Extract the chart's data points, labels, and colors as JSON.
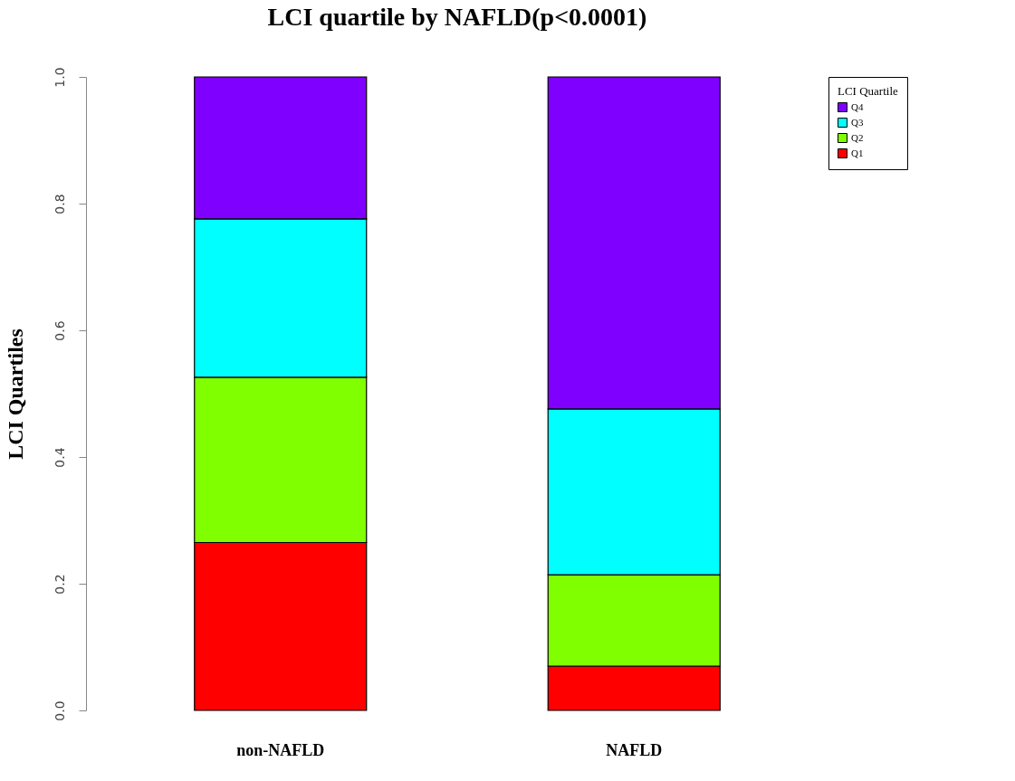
{
  "chart_data": {
    "type": "bar",
    "title": "LCI quartile by NAFLD(p<0.0001)",
    "ylabel": "LCI Quartiles",
    "legend_title": "LCI Quartile",
    "categories": [
      "non-NAFLD",
      "NAFLD"
    ],
    "stacked": true,
    "series": [
      {
        "name": "Q1",
        "color": "#ff0000",
        "values": [
          0.265,
          0.07
        ]
      },
      {
        "name": "Q2",
        "color": "#80ff00",
        "values": [
          0.261,
          0.144
        ]
      },
      {
        "name": "Q3",
        "color": "#00ffff",
        "values": [
          0.25,
          0.262
        ]
      },
      {
        "name": "Q4",
        "color": "#8000ff",
        "values": [
          0.224,
          0.524
        ]
      }
    ],
    "ylim": [
      0,
      1
    ],
    "yticks": [
      {
        "value": 0,
        "label": "0.0"
      },
      0.2,
      0.4,
      0.6,
      0.8,
      {
        "value": 1,
        "label": "1.0"
      }
    ],
    "grid": false,
    "legend": "top right"
  }
}
